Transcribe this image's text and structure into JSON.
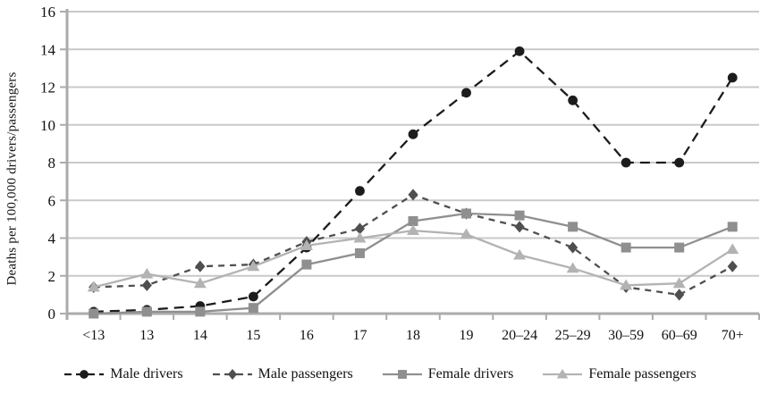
{
  "chart_data": {
    "type": "line",
    "title": "",
    "xlabel": "",
    "ylabel": "Deaths per 100,000 drivers/passengers",
    "ylim": [
      0,
      16
    ],
    "yticks": [
      0,
      2,
      4,
      6,
      8,
      10,
      12,
      14,
      16
    ],
    "grid": true,
    "legend_position": "bottom",
    "categories": [
      "<13",
      "13",
      "14",
      "15",
      "16",
      "17",
      "18",
      "19",
      "20–24",
      "25–29",
      "30–59",
      "60–69",
      "70+"
    ],
    "series": [
      {
        "name": "Male drivers",
        "marker": "circle",
        "line": "dashed",
        "dash": "11 7",
        "color": "#1c1c1c",
        "values": [
          0.1,
          0.2,
          0.4,
          0.9,
          3.5,
          6.5,
          9.5,
          11.7,
          13.9,
          11.3,
          8.0,
          8.0,
          12.5
        ]
      },
      {
        "name": "Male passengers",
        "marker": "diamond",
        "line": "dashed",
        "dash": "7 6",
        "color": "#4f4f4f",
        "values": [
          1.4,
          1.5,
          2.5,
          2.6,
          3.8,
          4.5,
          6.3,
          5.3,
          4.6,
          3.5,
          1.4,
          1.0,
          2.5
        ]
      },
      {
        "name": "Female drivers",
        "marker": "square",
        "line": "solid",
        "dash": "",
        "color": "#8f8f8f",
        "values": [
          0.0,
          0.1,
          0.1,
          0.3,
          2.6,
          3.2,
          4.9,
          5.3,
          5.2,
          4.6,
          3.5,
          3.5,
          4.6
        ]
      },
      {
        "name": "Female passengers",
        "marker": "triangle",
        "line": "solid",
        "dash": "",
        "color": "#b3b3b3",
        "values": [
          1.4,
          2.1,
          1.6,
          2.5,
          3.6,
          4.0,
          4.4,
          4.2,
          3.1,
          2.4,
          1.5,
          1.6,
          3.4
        ]
      }
    ],
    "colors": {
      "grid": "#c9c9c9",
      "axis": "#ababab",
      "text": "#111111",
      "background": "#ffffff"
    }
  }
}
